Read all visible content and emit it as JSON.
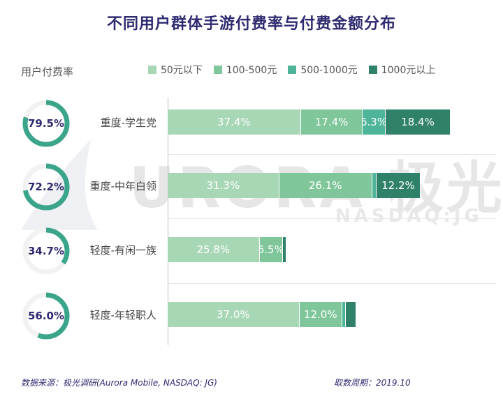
{
  "title": "不同用户群体手游付费率与付费金额分布",
  "rate_label": "用户付费率",
  "watermark": {
    "main": "URORA 极光",
    "sub": "NASDAQ:JG"
  },
  "footer": {
    "source": "数据来源：极光调研(Aurora Mobile, NASDAQ: JG)",
    "period": "取数周期：2019.10"
  },
  "colors": {
    "50元以下": "#a8d7b6",
    "100-500元": "#7fc69a",
    "500-1000元": "#4fb59a",
    "1000元以上": "#2f8169",
    "donut": "#3aa58a",
    "donut_track": "#f2f2f2",
    "title": "#2e2a70"
  },
  "chart_data": {
    "type": "bar",
    "orientation": "horizontal",
    "stacked": true,
    "title": "不同用户群体手游付费率与付费金额分布",
    "categories": [
      "重度-学生党",
      "重度-中年白领",
      "轻度-有闲一族",
      "轻度-年轻职人"
    ],
    "payment_rate_label": "用户付费率",
    "payment_rates": [
      "79.5%",
      "72.2%",
      "34.7%",
      "56.0%"
    ],
    "payment_rate_values": [
      79.5,
      72.2,
      34.7,
      56.0
    ],
    "legend_position": "top-right",
    "series": [
      {
        "name": "50元以下",
        "values": [
          37.4,
          31.3,
          25.8,
          37.0
        ],
        "labels": [
          "37.4%",
          "31.3%",
          "25.8%",
          "37.0%"
        ]
      },
      {
        "name": "100-500元",
        "values": [
          17.4,
          26.1,
          6.5,
          12.0
        ],
        "labels": [
          "17.4%",
          "26.1%",
          "6.5%",
          "12.0%"
        ]
      },
      {
        "name": "500-1000元",
        "values": [
          6.3,
          1.3,
          0,
          1.0
        ],
        "labels": [
          "6.3%",
          "",
          "",
          ""
        ]
      },
      {
        "name": "1000元以上",
        "values": [
          18.4,
          12.2,
          1.1,
          3.0
        ],
        "labels": [
          "18.4%",
          "12.2%",
          "",
          ""
        ]
      }
    ],
    "xlim": [
      0,
      100
    ],
    "grid": false
  }
}
